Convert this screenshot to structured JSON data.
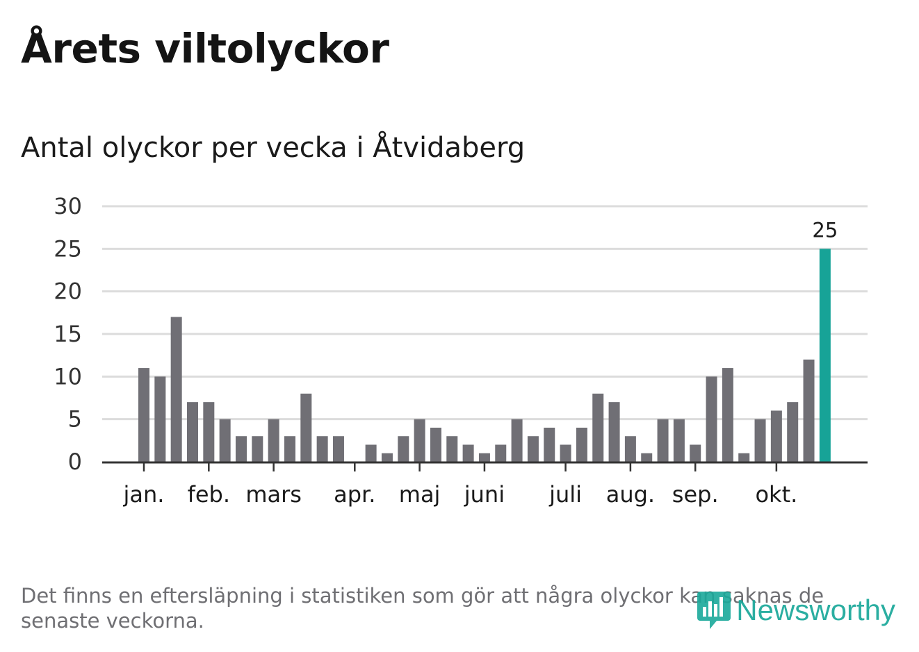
{
  "header": {
    "title": "Årets viltolyckor",
    "subtitle": "Antal olyckor per vecka i Åtvidaberg"
  },
  "colors": {
    "bar": "#706f75",
    "highlight": "#17a397",
    "grid": "#dcdcdc",
    "axis": "#333333",
    "brand": "#1aa89a"
  },
  "chart_data": {
    "type": "bar",
    "title": "Antal olyckor per vecka i Åtvidaberg",
    "xlabel": "",
    "ylabel": "",
    "ylim": [
      0,
      30
    ],
    "yticks": [
      0,
      5,
      10,
      15,
      20,
      25,
      30
    ],
    "grid": true,
    "values": [
      11,
      10,
      17,
      7,
      7,
      5,
      3,
      3,
      5,
      3,
      8,
      3,
      3,
      0,
      2,
      1,
      3,
      5,
      4,
      3,
      2,
      1,
      2,
      5,
      3,
      4,
      2,
      4,
      8,
      7,
      3,
      1,
      5,
      5,
      2,
      10,
      11,
      1,
      5,
      6,
      7,
      12,
      25
    ],
    "highlight_index": 42,
    "highlight_label": "25",
    "month_labels": [
      {
        "label": "jan.",
        "week_index": 0
      },
      {
        "label": "feb.",
        "week_index": 4
      },
      {
        "label": "mars",
        "week_index": 8
      },
      {
        "label": "apr.",
        "week_index": 13
      },
      {
        "label": "maj",
        "week_index": 17
      },
      {
        "label": "juni",
        "week_index": 21
      },
      {
        "label": "juli",
        "week_index": 26
      },
      {
        "label": "aug.",
        "week_index": 30
      },
      {
        "label": "sep.",
        "week_index": 34
      },
      {
        "label": "okt.",
        "week_index": 39
      }
    ]
  },
  "footer": {
    "note": "Det finns en eftersläpning i statistiken som gör att några olyckor kan saknas de senaste veckorna.",
    "brand": "Newsworthy"
  }
}
